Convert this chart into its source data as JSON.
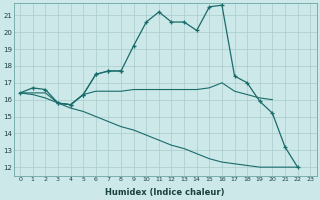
{
  "xlabel": "Humidex (Indice chaleur)",
  "bg_color": "#cce8e8",
  "grid_color": "#aacccc",
  "line_color": "#1a6b6b",
  "xlim": [
    -0.5,
    23.5
  ],
  "ylim": [
    11.5,
    21.7
  ],
  "xticks": [
    0,
    1,
    2,
    3,
    4,
    5,
    6,
    7,
    8,
    9,
    10,
    11,
    12,
    13,
    14,
    15,
    16,
    17,
    18,
    19,
    20,
    21,
    22,
    23
  ],
  "yticks": [
    12,
    13,
    14,
    15,
    16,
    17,
    18,
    19,
    20,
    21
  ],
  "series_main": {
    "x": [
      0,
      1,
      2,
      3,
      4,
      5,
      6,
      7,
      8,
      9,
      10,
      11,
      12,
      13,
      14,
      15,
      16,
      17,
      18,
      19,
      20,
      21,
      22
    ],
    "y": [
      16.4,
      16.7,
      16.6,
      15.8,
      15.7,
      16.3,
      17.5,
      17.7,
      17.7,
      19.2,
      20.6,
      21.2,
      20.6,
      20.6,
      20.1,
      21.5,
      21.6,
      17.4,
      17.0,
      15.9,
      15.2,
      13.2,
      12.0
    ]
  },
  "series_flat_top": {
    "x": [
      0,
      1,
      2,
      3,
      4,
      5,
      6,
      7,
      8,
      9,
      10,
      11,
      12,
      13,
      14,
      15,
      16,
      17,
      18,
      19,
      20
    ],
    "y": [
      16.4,
      16.4,
      16.4,
      15.8,
      15.7,
      16.3,
      16.5,
      16.5,
      16.5,
      16.6,
      16.6,
      16.6,
      16.6,
      16.6,
      16.6,
      16.7,
      17.0,
      16.5,
      16.3,
      16.1,
      16.0
    ]
  },
  "series_diagonal": {
    "x": [
      0,
      1,
      2,
      3,
      4,
      5,
      6,
      7,
      8,
      9,
      10,
      11,
      12,
      13,
      14,
      15,
      16,
      17,
      18,
      19,
      20,
      21,
      22
    ],
    "y": [
      16.4,
      16.3,
      16.1,
      15.8,
      15.5,
      15.3,
      15.0,
      14.7,
      14.4,
      14.2,
      13.9,
      13.6,
      13.3,
      13.1,
      12.8,
      12.5,
      12.3,
      12.2,
      12.1,
      12.0,
      12.0,
      12.0,
      12.0
    ]
  },
  "series_short_markers": {
    "x": [
      3,
      4,
      5,
      6,
      7,
      8
    ],
    "y": [
      15.8,
      15.7,
      16.3,
      17.5,
      17.7,
      17.7
    ]
  }
}
